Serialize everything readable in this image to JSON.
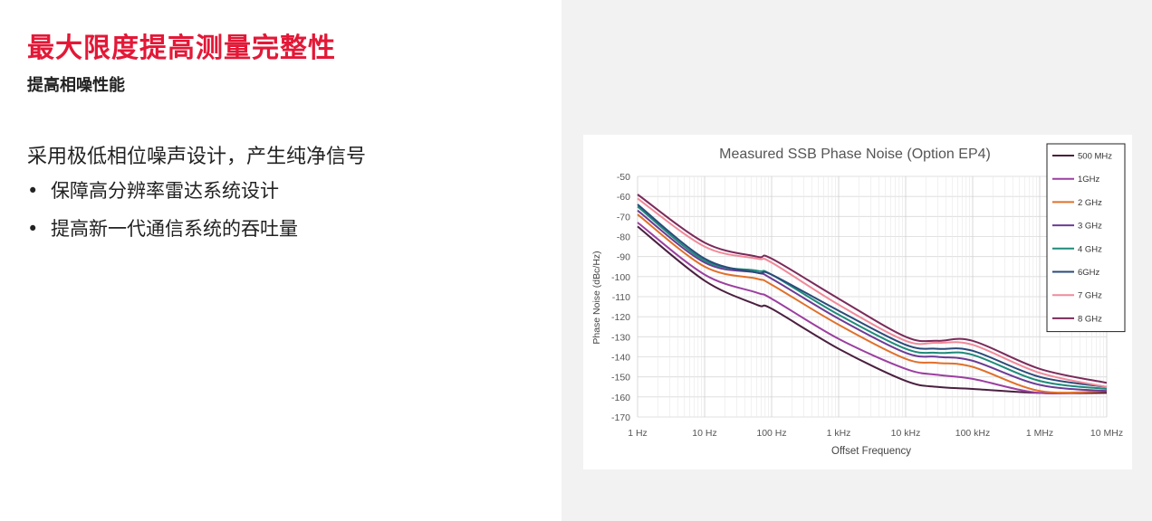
{
  "slide": {
    "title": "最大限度提高测量完整性",
    "subtitle": "提高相噪性能",
    "lead": "采用极低相位噪声设计，产生纯净信号",
    "bullets": [
      "保障高分辨率雷达系统设计",
      "提高新一代通信系统的吞吐量"
    ],
    "bullet_glyph": "•",
    "accent_color": "#e31837"
  },
  "chart_data": {
    "type": "line",
    "title": "Measured SSB Phase Noise (Option EP4)",
    "xlabel": "Offset Frequency",
    "ylabel": "Phase Noise (dBc/Hz)",
    "x_scale": "log",
    "x": [
      1,
      10,
      60,
      100,
      1000,
      10000,
      30000,
      100000,
      1000000,
      10000000
    ],
    "x_tick_labels": [
      "1 Hz",
      "10 Hz",
      "100 Hz",
      "1 kHz",
      "10 kHz",
      "100 kHz",
      "1 MHz",
      "10 MHz"
    ],
    "ylim": [
      -170,
      -50
    ],
    "y_ticks": [
      -50,
      -60,
      -70,
      -80,
      -90,
      -100,
      -110,
      -120,
      -130,
      -140,
      -150,
      -160,
      -170
    ],
    "grid": true,
    "legend_position": "top-right",
    "series": [
      {
        "name": "500 MHz",
        "color": "#4a1f3f",
        "values": [
          -75,
          -102,
          -114,
          -116,
          -136,
          -152,
          -155,
          -156,
          -158,
          -158
        ]
      },
      {
        "name": "1GHz",
        "color": "#9b3fa0",
        "values": [
          -73,
          -99,
          -108,
          -111,
          -131,
          -146,
          -149,
          -151,
          -158,
          -157
        ]
      },
      {
        "name": "2 GHz",
        "color": "#e0702a",
        "values": [
          -69,
          -95,
          -101,
          -104,
          -124,
          -141,
          -143,
          -145,
          -157,
          -157
        ]
      },
      {
        "name": "3 GHz",
        "color": "#6b3b96",
        "values": [
          -67,
          -93,
          -98,
          -101,
          -121,
          -138,
          -140,
          -142,
          -154,
          -157
        ]
      },
      {
        "name": "4 GHz",
        "color": "#1e8a7a",
        "values": [
          -65,
          -92,
          -97,
          -99,
          -119,
          -136,
          -138,
          -139,
          -152,
          -156
        ]
      },
      {
        "name": "6GHz",
        "color": "#2a4a7a",
        "values": [
          -64,
          -91,
          -98,
          -99,
          -117,
          -134,
          -136,
          -137,
          -150,
          -155
        ]
      },
      {
        "name": "7 GHz",
        "color": "#f08a9a",
        "values": [
          -61,
          -85,
          -91,
          -93,
          -114,
          -132,
          -133,
          -134,
          -148,
          -155
        ]
      },
      {
        "name": "8 GHz",
        "color": "#7a2a5a",
        "values": [
          -59,
          -83,
          -90,
          -91,
          -111,
          -130,
          -132,
          -132,
          -146,
          -153
        ]
      }
    ]
  }
}
